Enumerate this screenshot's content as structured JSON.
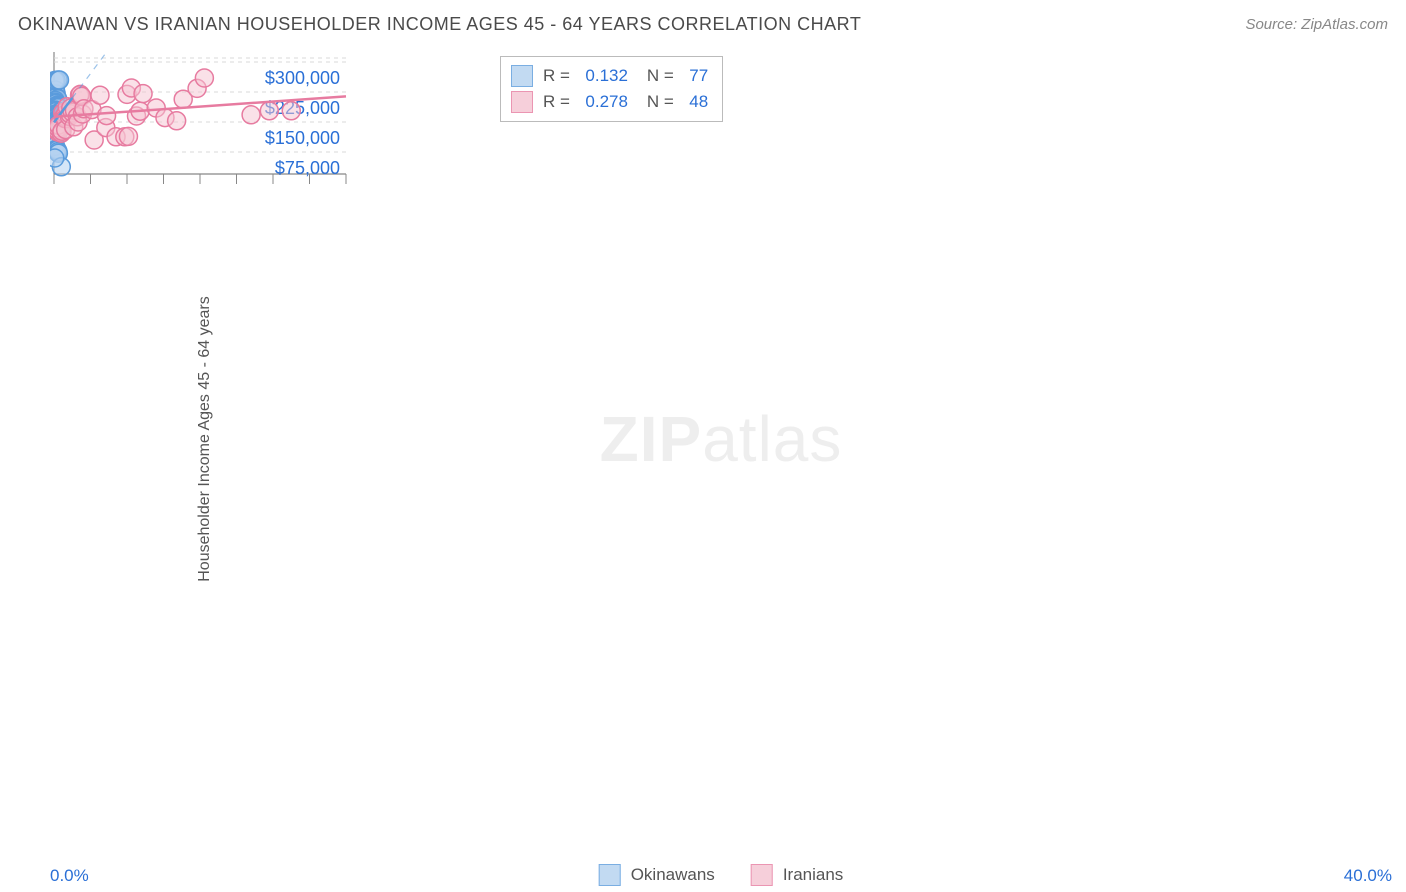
{
  "header": {
    "title": "OKINAWAN VS IRANIAN HOUSEHOLDER INCOME AGES 45 - 64 YEARS CORRELATION CHART",
    "source": "Source: ZipAtlas.com"
  },
  "chart": {
    "type": "scatter",
    "y_axis_label": "Householder Income Ages 45 - 64 years",
    "watermark": "ZIPatlas",
    "xlim": [
      0,
      40
    ],
    "ylim": [
      20000,
      325000
    ],
    "x_tick_label_left": "0.0%",
    "x_tick_label_right": "40.0%",
    "x_ticks": [
      0,
      5,
      10,
      15,
      20,
      25,
      30,
      35,
      40
    ],
    "y_gridlines": [
      75000,
      150000,
      225000,
      300000
    ],
    "y_tick_labels": [
      "$75,000",
      "$150,000",
      "$225,000",
      "$300,000"
    ],
    "background_color": "#ffffff",
    "grid_color": "#d8d8d8",
    "axis_color": "#888888",
    "tick_label_color": "#2a6fd6",
    "marker_radius": 9,
    "marker_stroke_width": 1.5,
    "trend_line_width": 2.5,
    "series": [
      {
        "name": "Okinawans",
        "fill": "#b4d1f0",
        "stroke": "#5a9bdc",
        "fill_opacity": 0.55,
        "R": "0.132",
        "N": "77",
        "trend": {
          "x1": 0,
          "y1": 149000,
          "x2": 2.5,
          "y2": 210000,
          "dash_extend_to": 325000
        },
        "points": [
          [
            0.2,
            230000
          ],
          [
            0.3,
            220000
          ],
          [
            0.2,
            214000
          ],
          [
            0.35,
            212000
          ],
          [
            0.35,
            205000
          ],
          [
            0.5,
            208000
          ],
          [
            0.15,
            204000
          ],
          [
            0.12,
            200000
          ],
          [
            0.2,
            197000
          ],
          [
            0.28,
            196000
          ],
          [
            0.4,
            192000
          ],
          [
            0.25,
            190000
          ],
          [
            0.36,
            189000
          ],
          [
            0.18,
            187000
          ],
          [
            0.5,
            186000
          ],
          [
            0.3,
            185000
          ],
          [
            0.6,
            186000
          ],
          [
            0.22,
            180000
          ],
          [
            0.4,
            178000
          ],
          [
            0.28,
            176000
          ],
          [
            0.75,
            175000
          ],
          [
            0.2,
            170000
          ],
          [
            0.55,
            168000
          ],
          [
            0.35,
            168000
          ],
          [
            0.48,
            166000
          ],
          [
            0.65,
            165000
          ],
          [
            0.9,
            167000
          ],
          [
            0.25,
            162000
          ],
          [
            0.3,
            160000
          ],
          [
            0.6,
            160000
          ],
          [
            0.18,
            159000
          ],
          [
            0.42,
            157000
          ],
          [
            0.5,
            155000
          ],
          [
            0.8,
            160000
          ],
          [
            0.3,
            152000
          ],
          [
            0.95,
            158000
          ],
          [
            0.24,
            150000
          ],
          [
            0.4,
            149000
          ],
          [
            0.55,
            148000
          ],
          [
            0.7,
            150000
          ],
          [
            0.6,
            152000
          ],
          [
            0.2,
            146000
          ],
          [
            0.45,
            144000
          ],
          [
            0.33,
            143000
          ],
          [
            0.5,
            142000
          ],
          [
            0.62,
            147000
          ],
          [
            0.3,
            140000
          ],
          [
            0.26,
            138000
          ],
          [
            0.4,
            137000
          ],
          [
            0.22,
            136000
          ],
          [
            0.55,
            137000
          ],
          [
            0.48,
            138000
          ],
          [
            0.35,
            134000
          ],
          [
            0.6,
            135000
          ],
          [
            0.28,
            131000
          ],
          [
            0.45,
            130000
          ],
          [
            0.3,
            127000
          ],
          [
            0.95,
            136000
          ],
          [
            0.52,
            130000
          ],
          [
            0.36,
            126000
          ],
          [
            0.42,
            124000
          ],
          [
            0.4,
            122000
          ],
          [
            0.3,
            119000
          ],
          [
            0.6,
            125000
          ],
          [
            0.18,
            114000
          ],
          [
            0.12,
            254000
          ],
          [
            0.3,
            254000
          ],
          [
            0.55,
            255000
          ],
          [
            0.75,
            255000
          ],
          [
            0.2,
            90000
          ],
          [
            0.05,
            88000
          ],
          [
            0.3,
            82000
          ],
          [
            0.45,
            80000
          ],
          [
            0.55,
            76000
          ],
          [
            0.6,
            72000
          ],
          [
            1.0,
            38000
          ],
          [
            0.1,
            60000
          ]
        ]
      },
      {
        "name": "Iranians",
        "fill": "#f5c4d2",
        "stroke": "#e77ba0",
        "fill_opacity": 0.5,
        "R": "0.278",
        "N": "48",
        "trend": {
          "x1": 0,
          "y1": 163000,
          "x2": 40,
          "y2": 214000
        },
        "points": [
          [
            0.5,
            125000
          ],
          [
            0.45,
            130000
          ],
          [
            0.55,
            135000
          ],
          [
            0.6,
            142000
          ],
          [
            1.0,
            122000
          ],
          [
            1.1,
            127000
          ],
          [
            1.2,
            173000
          ],
          [
            1.3,
            162000
          ],
          [
            1.5,
            164000
          ],
          [
            1.6,
            170000
          ],
          [
            1.55,
            158000
          ],
          [
            1.6,
            131000
          ],
          [
            1.8,
            188000
          ],
          [
            2.1,
            164000
          ],
          [
            2.2,
            170000
          ],
          [
            2.3,
            185000
          ],
          [
            2.5,
            174000
          ],
          [
            2.7,
            138000
          ],
          [
            2.8,
            179000
          ],
          [
            3.2,
            163000
          ],
          [
            3.3,
            150000
          ],
          [
            3.5,
            217000
          ],
          [
            3.6,
            219000
          ],
          [
            3.9,
            170000
          ],
          [
            3.8,
            214000
          ],
          [
            4.1,
            183000
          ],
          [
            5.2,
            181000
          ],
          [
            5.5,
            105000
          ],
          [
            6.3,
            217000
          ],
          [
            7.1,
            136000
          ],
          [
            7.2,
            166000
          ],
          [
            8.5,
            113000
          ],
          [
            9.7,
            113000
          ],
          [
            10.0,
            219000
          ],
          [
            10.2,
            114000
          ],
          [
            10.6,
            235000
          ],
          [
            11.3,
            165000
          ],
          [
            11.8,
            177000
          ],
          [
            12.2,
            221000
          ],
          [
            14.0,
            185000
          ],
          [
            15.2,
            161000
          ],
          [
            16.8,
            153000
          ],
          [
            17.7,
            207000
          ],
          [
            19.6,
            234000
          ],
          [
            20.6,
            260000
          ],
          [
            27.0,
            168000
          ],
          [
            29.5,
            178000
          ],
          [
            32.5,
            178000
          ]
        ]
      }
    ],
    "legend_top": {
      "rows": [
        {
          "swatch_series": 0,
          "r_label": "R  =",
          "n_label": "N  ="
        },
        {
          "swatch_series": 1,
          "r_label": "R  =",
          "n_label": "N  ="
        }
      ]
    }
  }
}
